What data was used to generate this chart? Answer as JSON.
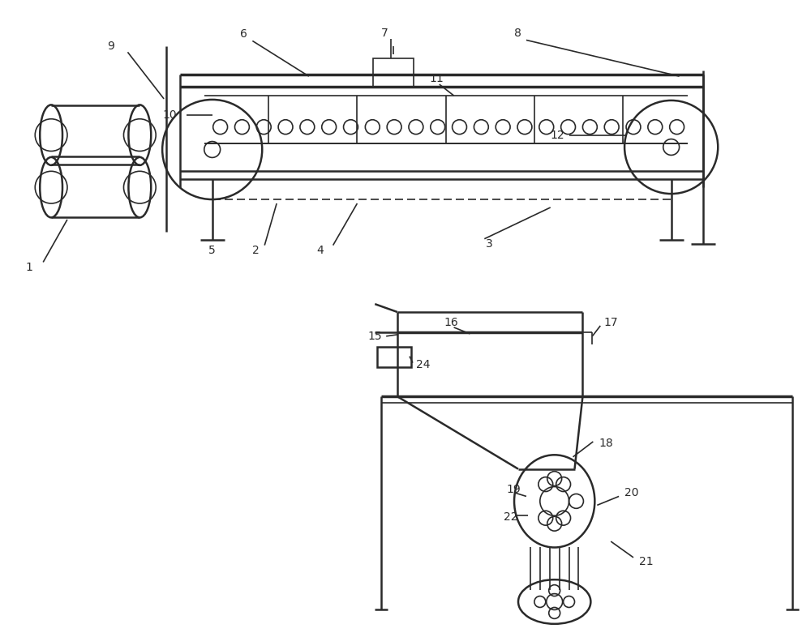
{
  "bg_color": "#ffffff",
  "line_color": "#2a2a2a",
  "lw_thin": 1.2,
  "lw_med": 1.8,
  "lw_thick": 2.5,
  "label_fontsize": 10,
  "label_color": "#2a2a2a"
}
